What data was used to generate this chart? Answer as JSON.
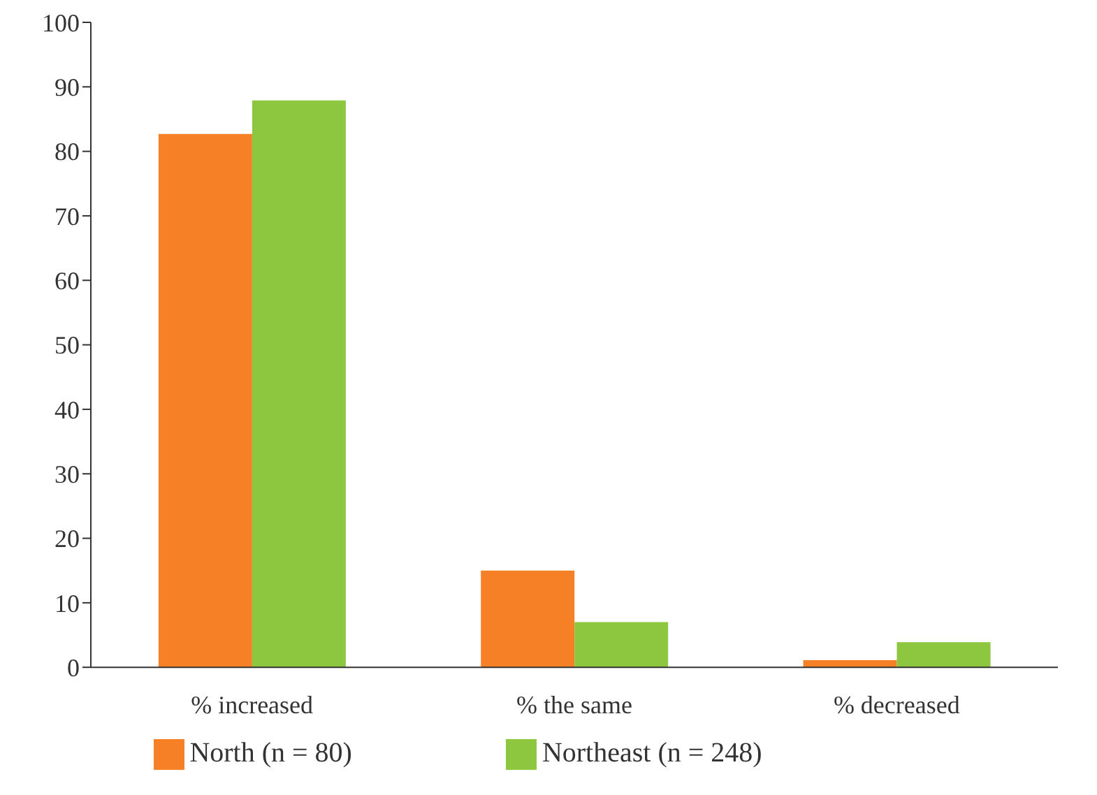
{
  "chart_data": {
    "type": "bar",
    "categories": [
      "% increased",
      "% the same",
      "% decreased"
    ],
    "series": [
      {
        "name": "North (n = 80)",
        "color": "#f58025",
        "values": [
          82.7,
          15,
          1.1
        ]
      },
      {
        "name": "Northeast (n = 248)",
        "color": "#8dc63f",
        "values": [
          87.9,
          7,
          3.9
        ]
      }
    ],
    "ylim": [
      0,
      100
    ],
    "yticks": [
      0,
      10,
      20,
      30,
      40,
      50,
      60,
      70,
      80,
      90,
      100
    ],
    "grid": false,
    "legend": "bottom"
  }
}
